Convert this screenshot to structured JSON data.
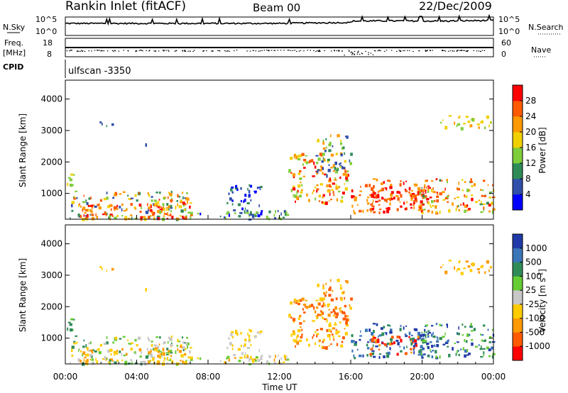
{
  "header": {
    "station": "Rankin Inlet (fitACF)",
    "beam": "Beam 00",
    "date": "22/Dec/2009"
  },
  "top_panels": {
    "nsky_label": "N.Sky",
    "nsky_ticks": [
      "10^5",
      "10^0"
    ],
    "nsearch_label": "N.Search",
    "nsearch_ticks": [
      "10^5",
      "10^0"
    ],
    "freq_label": "Freq.",
    "freq_unit": "[MHz]",
    "freq_ticks": [
      "18",
      "8"
    ],
    "nave_label": "Nave",
    "nave_ticks": [
      "60",
      "0"
    ],
    "cpid_label": "CPID",
    "cpid_value": "ulfscan -3350"
  },
  "chart_data": [
    {
      "type": "heatmap",
      "name": "power",
      "ylabel": "Slant Range [km]",
      "xlim": [
        0,
        24
      ],
      "ylim": [
        180,
        4600
      ],
      "yticks": [
        "1000",
        "2000",
        "3000",
        "4000"
      ],
      "ytick_values": [
        1000,
        2000,
        3000,
        4000
      ],
      "colorbar_label": "Power [dB]",
      "colorbar_ticks": [
        "4",
        "8",
        "12",
        "16",
        "20",
        "24",
        "28"
      ],
      "colorbar_colors": [
        "#0000ff",
        "#2f4faa",
        "#2e8b57",
        "#7fcd3a",
        "#f0d000",
        "#ff9900",
        "#ff5a00",
        "#ff0000"
      ]
    },
    {
      "type": "heatmap",
      "name": "velocity",
      "ylabel": "Slant Range [km]",
      "xlabel": "Time UT",
      "xlim": [
        0,
        24
      ],
      "ylim": [
        180,
        4600
      ],
      "xticks": [
        "00:00",
        "04:00",
        "08:00",
        "12:00",
        "16:00",
        "20:00",
        "00:00"
      ],
      "xtick_values": [
        0,
        4,
        8,
        12,
        16,
        20,
        24
      ],
      "yticks": [
        "1000",
        "2000",
        "3000",
        "4000"
      ],
      "ytick_values": [
        1000,
        2000,
        3000,
        4000
      ],
      "colorbar_label": "Velocity [m s",
      "colorbar_label_sup": "-1",
      "colorbar_label_end": "]",
      "colorbar_ticks": [
        "1000",
        "500",
        "100",
        "25",
        "-25",
        "-100",
        "-500",
        "-1000"
      ],
      "colorbar_colors": [
        "#1f3aa8",
        "#3a75b8",
        "#2e8b57",
        "#66cc33",
        "#c8c8c8",
        "#ffcc00",
        "#ff9900",
        "#ff5a00",
        "#ff0000"
      ]
    }
  ]
}
